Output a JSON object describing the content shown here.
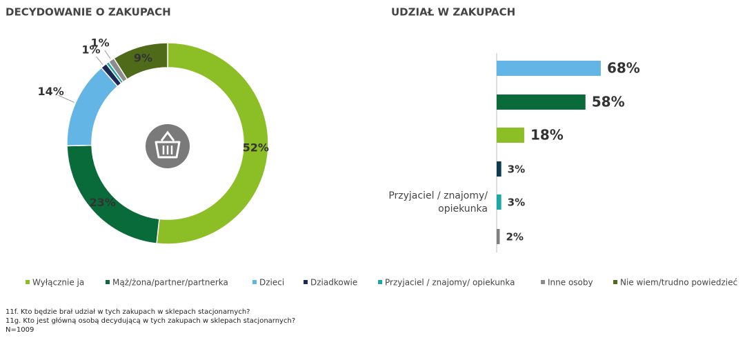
{
  "chart_data": [
    {
      "type": "pie",
      "title": "DECYDOWANIE O ZAKUPACH",
      "categories": [
        "Wyłącznie ja",
        "Mąż/żona/partner/partnerka",
        "Dzieci",
        "Dziadkowie",
        "Przyjaciel / znajomy/ opiekunka",
        "Inne osoby",
        "Nie wiem/trudno powiedzieć"
      ],
      "values": [
        52,
        23,
        14,
        1,
        0.5,
        1,
        9
      ],
      "value_labels": [
        "52%",
        "23%",
        "14%",
        "1%",
        null,
        "1%",
        "9%"
      ],
      "colors": [
        "#8cbf26",
        "#0a6b3a",
        "#63b5e5",
        "#1b2a55",
        "#1ba8a8",
        "#8c8c8c",
        "#4f6b1a"
      ],
      "legend": "bottom"
    },
    {
      "type": "hbar",
      "title": "UDZIAŁ W ZAKUPACH",
      "categories": [
        "Dzieci",
        "Mąż/żona/partner/partnerka",
        "Wyłącznie ja",
        "Dziadkowie",
        "Przyjaciel / znajomy/ opiekunka",
        "Inne osoby"
      ],
      "values": [
        68,
        58,
        18,
        3,
        3,
        2
      ],
      "value_labels": [
        "68%",
        "58%",
        "18%",
        "3%",
        "3%",
        "2%"
      ],
      "colors": [
        "#63b5e5",
        "#0a6b3a",
        "#8cbf26",
        "#0d3b4f",
        "#1ba8a8",
        "#808080"
      ]
    }
  ],
  "footnotes": [
    "11f. Kto będzie brał udział w tych zakupach w sklepach stacjonarnych?",
    "11g. Kto jest główną osobą decydującą w tych zakupach w sklepach stacjonarnych?",
    "N=1009"
  ]
}
